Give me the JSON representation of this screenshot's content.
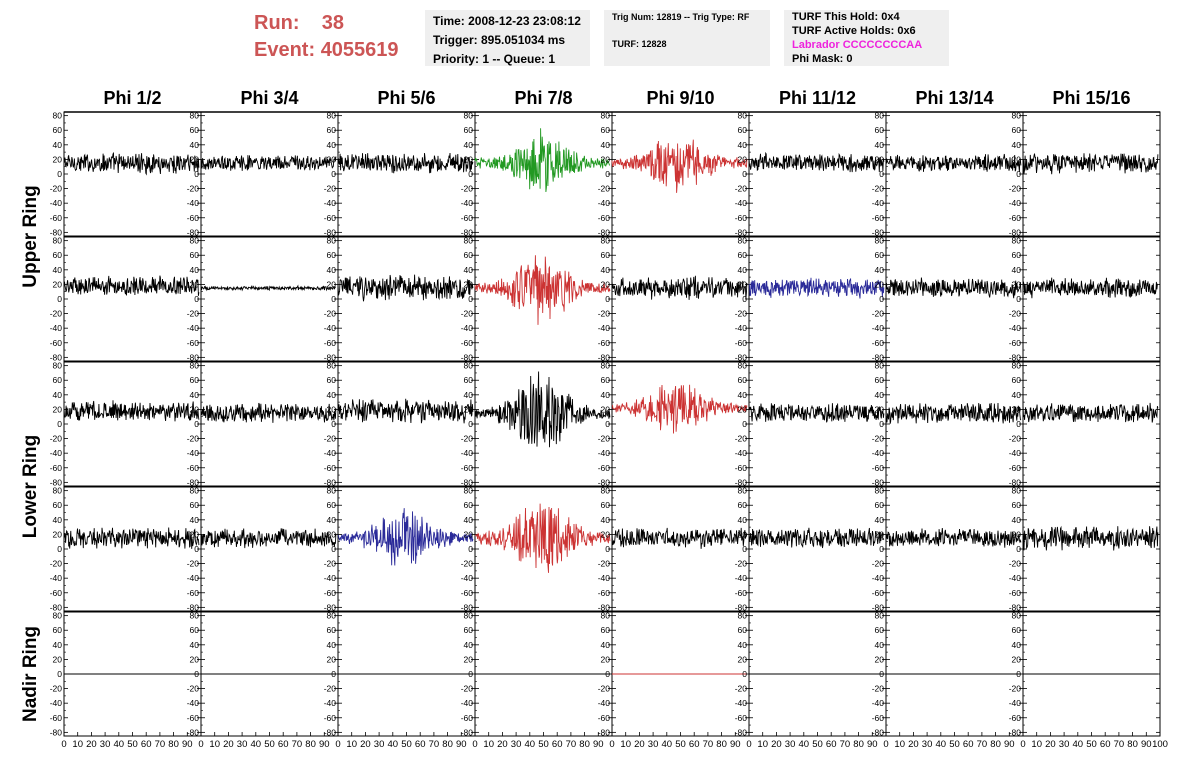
{
  "header": {
    "run_label": "Run:",
    "run_value": "38",
    "event_label": "Event:",
    "event_value": "4055619",
    "info1": [
      "Time: 2008-12-23 23:08:12",
      "Trigger: 895.051034 ms",
      "Priority: 1 -- Queue: 1"
    ],
    "info2": [
      "Trig Num: 12819 -- Trig Type: RF",
      "TURF: 12828"
    ],
    "info3": [
      "TURF This Hold: 0x4",
      "TURF Active Holds: 0x6",
      "Labrador CCCCCCCCAA",
      "Phi Mask: 0"
    ]
  },
  "chart_data": {
    "type": "line",
    "columns": [
      "Phi 1/2",
      "Phi 3/4",
      "Phi 5/6",
      "Phi 7/8",
      "Phi 9/10",
      "Phi 11/12",
      "Phi 13/14",
      "Phi 15/16"
    ],
    "rows": [
      "Upper Ring",
      "Upper Ring",
      "Lower Ring",
      "Lower Ring",
      "Nadir Ring"
    ],
    "row_labels": [
      "Upper Ring",
      "Lower Ring",
      "Nadir Ring"
    ],
    "xlim": [
      0,
      100
    ],
    "ylim": [
      -85,
      85
    ],
    "y_ticks": [
      80,
      60,
      40,
      20,
      0,
      -20,
      -40,
      -60,
      -80
    ],
    "x_ticks": [
      0,
      10,
      20,
      30,
      40,
      50,
      60,
      70,
      80,
      90,
      100
    ],
    "colors": {
      "black": "#000000",
      "green": "#229922",
      "red": "#cc3333",
      "blue": "#2a2a99"
    },
    "panels": [
      [
        {
          "color": "black",
          "amp": 16,
          "offset": 15,
          "burst": 0
        },
        {
          "color": "black",
          "amp": 12,
          "offset": 15,
          "burst": 0
        },
        {
          "color": "black",
          "amp": 16,
          "offset": 15,
          "burst": 0
        },
        {
          "color": "green",
          "amp": 18,
          "offset": 15,
          "burst": 45
        },
        {
          "color": "red",
          "amp": 18,
          "offset": 15,
          "burst": 38
        },
        {
          "color": "black",
          "amp": 14,
          "offset": 15,
          "burst": 0
        },
        {
          "color": "black",
          "amp": 13,
          "offset": 15,
          "burst": 0
        },
        {
          "color": "black",
          "amp": 16,
          "offset": 15,
          "burst": 0
        }
      ],
      [
        {
          "color": "black",
          "amp": 15,
          "offset": 18,
          "burst": 0
        },
        {
          "color": "black",
          "amp": 3,
          "offset": 15,
          "burst": 0
        },
        {
          "color": "black",
          "amp": 20,
          "offset": 15,
          "burst": 0
        },
        {
          "color": "red",
          "amp": 20,
          "offset": 15,
          "burst": 50
        },
        {
          "color": "black",
          "amp": 17,
          "offset": 15,
          "burst": 0
        },
        {
          "color": "blue",
          "amp": 15,
          "offset": 15,
          "burst": 0
        },
        {
          "color": "black",
          "amp": 15,
          "offset": 15,
          "burst": 0
        },
        {
          "color": "black",
          "amp": 15,
          "offset": 15,
          "burst": 0
        }
      ],
      [
        {
          "color": "black",
          "amp": 15,
          "offset": 18,
          "burst": 0
        },
        {
          "color": "black",
          "amp": 15,
          "offset": 15,
          "burst": 0
        },
        {
          "color": "black",
          "amp": 18,
          "offset": 18,
          "burst": 0
        },
        {
          "color": "black",
          "amp": 20,
          "offset": 15,
          "burst": 55
        },
        {
          "color": "red",
          "amp": 18,
          "offset": 22,
          "burst": 38
        },
        {
          "color": "black",
          "amp": 15,
          "offset": 15,
          "burst": 0
        },
        {
          "color": "black",
          "amp": 16,
          "offset": 15,
          "burst": 0
        },
        {
          "color": "black",
          "amp": 15,
          "offset": 15,
          "burst": 0
        }
      ],
      [
        {
          "color": "black",
          "amp": 16,
          "offset": 15,
          "burst": 0
        },
        {
          "color": "black",
          "amp": 15,
          "offset": 15,
          "burst": 0
        },
        {
          "color": "blue",
          "amp": 18,
          "offset": 15,
          "burst": 42
        },
        {
          "color": "red",
          "amp": 20,
          "offset": 15,
          "burst": 55
        },
        {
          "color": "black",
          "amp": 15,
          "offset": 15,
          "burst": 0
        },
        {
          "color": "black",
          "amp": 15,
          "offset": 15,
          "burst": 0
        },
        {
          "color": "black",
          "amp": 14,
          "offset": 15,
          "burst": 0
        },
        {
          "color": "black",
          "amp": 18,
          "offset": 15,
          "burst": 0
        }
      ],
      [
        {
          "color": "black",
          "amp": 0,
          "offset": 0,
          "burst": 0
        },
        {
          "color": "black",
          "amp": 0,
          "offset": 0,
          "burst": 0
        },
        {
          "color": "black",
          "amp": 0,
          "offset": 0,
          "burst": 0
        },
        {
          "color": "black",
          "amp": 0,
          "offset": 0,
          "burst": 0
        },
        {
          "color": "red",
          "amp": 0,
          "offset": 0,
          "burst": 0
        },
        {
          "color": "black",
          "amp": 0,
          "offset": 0,
          "burst": 0
        },
        {
          "color": "black",
          "amp": 0,
          "offset": 0,
          "burst": 0
        },
        {
          "color": "black",
          "amp": 0,
          "offset": 0,
          "burst": 0
        }
      ]
    ]
  }
}
